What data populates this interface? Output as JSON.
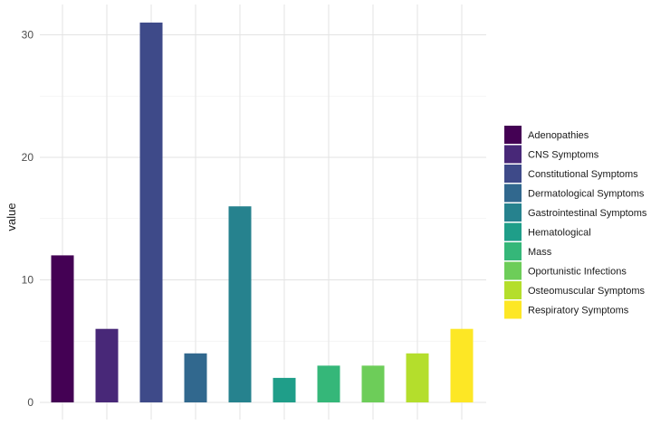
{
  "chart_data": {
    "type": "bar",
    "title": "",
    "xlabel": "",
    "ylabel": "value",
    "ylim": [
      0,
      31.9
    ],
    "yticks": [
      0,
      10,
      20,
      30
    ],
    "grid": true,
    "legend_position": "right",
    "categories": [
      "Adenopathies",
      "CNS Symptoms",
      "Constitutional Symptoms",
      "Dermatological Symptoms",
      "Gastrointestinal Symptoms",
      "Hematological",
      "Mass",
      "Oportunistic Infections",
      "Osteomuscular Symptoms",
      "Respiratory Symptoms"
    ],
    "values": [
      12,
      6,
      31,
      4,
      16,
      2,
      3,
      3,
      4,
      6
    ],
    "colors": [
      "#440154",
      "#482878",
      "#3E4A89",
      "#31688E",
      "#26828E",
      "#1F9E89",
      "#35B779",
      "#6DCD59",
      "#B4DE2C",
      "#FDE725"
    ]
  }
}
